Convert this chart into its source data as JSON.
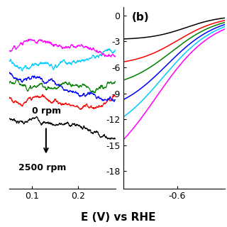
{
  "left_panel": {
    "x_range": [
      0.05,
      0.28
    ],
    "y_range": [
      -0.15,
      0.35
    ],
    "x_ticks": [
      0.1,
      0.2
    ],
    "x_tick_labels": [
      "0.1",
      "0.2"
    ],
    "annotation_text_top": "0 rpm",
    "annotation_text_bottom": "2500 rpm",
    "curves": [
      {
        "color": "#000000",
        "y_base": 0.04,
        "slope": -0.02
      },
      {
        "color": "#FF0000",
        "y_base": 0.1,
        "slope": -0.01
      },
      {
        "color": "#008000",
        "y_base": 0.14,
        "slope": -0.01
      },
      {
        "color": "#0000FF",
        "y_base": 0.17,
        "slope": -0.01
      },
      {
        "color": "#00CCFF",
        "y_base": 0.2,
        "slope": -0.01
      },
      {
        "color": "#FF00FF",
        "y_base": 0.23,
        "slope": -0.01
      }
    ]
  },
  "right_panel": {
    "x_range": [
      -0.85,
      -0.38
    ],
    "y_range": [
      -20,
      1
    ],
    "x_ticks": [
      -0.6
    ],
    "x_tick_labels": [
      "-0.6"
    ],
    "y_ticks": [
      0,
      -3,
      -6,
      -9,
      -12,
      -15,
      -18
    ],
    "y_tick_labels": [
      "0",
      "-3",
      "-6",
      "-9",
      "-12",
      "-15",
      "-18"
    ],
    "label": "(b)",
    "curves": [
      {
        "color": "#000000",
        "ilim": -2.8,
        "E_half": -0.56,
        "steepness": 12.0
      },
      {
        "color": "#FF0000",
        "ilim": -5.8,
        "E_half": -0.6,
        "steepness": 10.0
      },
      {
        "color": "#008000",
        "ilim": -8.5,
        "E_half": -0.63,
        "steepness": 9.0
      },
      {
        "color": "#0000FF",
        "ilim": -11.5,
        "E_half": -0.65,
        "steepness": 8.5
      },
      {
        "color": "#00CCFF",
        "ilim": -14.5,
        "E_half": -0.67,
        "steepness": 8.0
      },
      {
        "color": "#FF00FF",
        "ilim": -19.0,
        "E_half": -0.7,
        "steepness": 7.5
      }
    ]
  },
  "xlabel": "E (V) vs RHE",
  "background_color": "#ffffff"
}
